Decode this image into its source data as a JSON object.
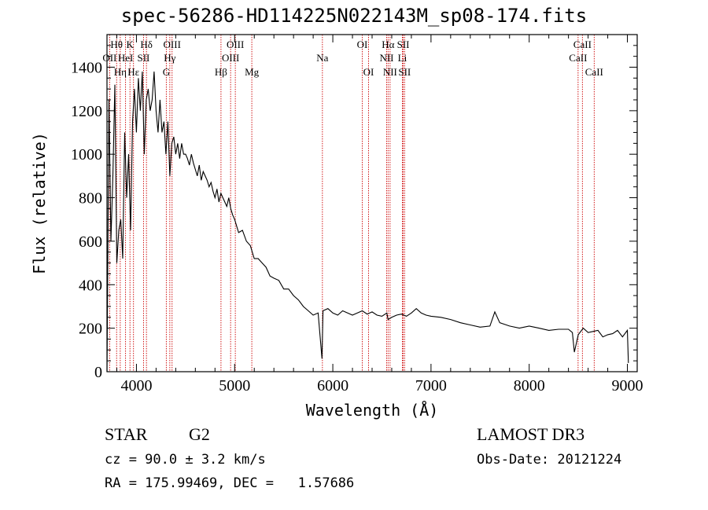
{
  "chart_data": {
    "type": "line",
    "title": "spec-56286-HD114225N022143M_sp08-174.fits",
    "xlabel": "Wavelength (Å)",
    "ylabel": "Flux (relative)",
    "xlim": [
      3700,
      9100
    ],
    "ylim": [
      0,
      1550
    ],
    "x_ticks": [
      4000,
      5000,
      6000,
      7000,
      8000,
      9000
    ],
    "y_ticks": [
      0,
      200,
      400,
      600,
      800,
      1000,
      1200,
      1400
    ],
    "series": [
      {
        "x": [
          3700,
          3720,
          3740,
          3760,
          3780,
          3800,
          3820,
          3840,
          3860,
          3880,
          3900,
          3920,
          3940,
          3960,
          3980,
          4000,
          4020,
          4040,
          4060,
          4080,
          4100,
          4120,
          4140,
          4160,
          4180,
          4200,
          4220,
          4240,
          4260,
          4280,
          4300,
          4320,
          4340,
          4360,
          4380,
          4400,
          4420,
          4440,
          4460,
          4480,
          4500,
          4520,
          4540,
          4560,
          4580,
          4600,
          4620,
          4640,
          4660,
          4680,
          4700,
          4720,
          4740,
          4760,
          4780,
          4800,
          4820,
          4840,
          4860,
          4880,
          4900,
          4920,
          4940,
          4960,
          4980,
          5000,
          5040,
          5080,
          5120,
          5160,
          5200,
          5240,
          5280,
          5320,
          5360,
          5400,
          5450,
          5500,
          5550,
          5600,
          5650,
          5700,
          5750,
          5800,
          5850,
          5890,
          5900,
          5950,
          6000,
          6050,
          6100,
          6150,
          6200,
          6250,
          6300,
          6350,
          6400,
          6450,
          6500,
          6550,
          6563,
          6600,
          6650,
          6700,
          6750,
          6800,
          6850,
          6900,
          6950,
          7000,
          7100,
          7200,
          7300,
          7400,
          7500,
          7600,
          7650,
          7700,
          7800,
          7900,
          8000,
          8100,
          8200,
          8300,
          8400,
          8440,
          8460,
          8500,
          8550,
          8600,
          8650,
          8700,
          8750,
          8800,
          8850,
          8900,
          8950,
          9000,
          9010
        ],
        "y": [
          0,
          1250,
          600,
          900,
          1320,
          500,
          650,
          700,
          520,
          1100,
          800,
          1000,
          650,
          1150,
          1300,
          1100,
          1350,
          1200,
          1380,
          1000,
          1250,
          1300,
          1200,
          1250,
          1380,
          1200,
          1100,
          1250,
          1100,
          1150,
          1000,
          1150,
          900,
          1050,
          1080,
          1000,
          1050,
          980,
          1050,
          1000,
          1000,
          980,
          950,
          1000,
          960,
          930,
          900,
          950,
          880,
          920,
          900,
          880,
          850,
          870,
          830,
          800,
          840,
          780,
          820,
          800,
          780,
          760,
          800,
          750,
          720,
          700,
          640,
          650,
          600,
          580,
          520,
          520,
          500,
          480,
          440,
          430,
          420,
          380,
          380,
          350,
          330,
          300,
          280,
          260,
          270,
          60,
          280,
          290,
          270,
          260,
          280,
          270,
          260,
          270,
          280,
          265,
          275,
          260,
          255,
          270,
          240,
          250,
          260,
          265,
          255,
          270,
          290,
          270,
          260,
          255,
          250,
          240,
          225,
          215,
          205,
          210,
          275,
          225,
          210,
          200,
          210,
          200,
          190,
          195,
          195,
          180,
          90,
          170,
          200,
          180,
          185,
          190,
          160,
          170,
          175,
          190,
          160,
          190,
          40
        ]
      }
    ],
    "spectral_lines": [
      {
        "label": "Hθ",
        "x": 3798,
        "row": 1
      },
      {
        "label": "OII",
        "x": 3727,
        "row": 2
      },
      {
        "label": "Hη",
        "x": 3835,
        "row": 3
      },
      {
        "label": "K",
        "x": 3934,
        "row": 1
      },
      {
        "label": "HeI",
        "x": 3889,
        "row": 2
      },
      {
        "label": "Hε",
        "x": 3970,
        "row": 3
      },
      {
        "label": "Hδ",
        "x": 4102,
        "row": 1
      },
      {
        "label": "SII",
        "x": 4072,
        "row": 2
      },
      {
        "label": "OIII",
        "x": 4363,
        "row": 1
      },
      {
        "label": "Hγ",
        "x": 4340,
        "row": 2
      },
      {
        "label": "G",
        "x": 4304,
        "row": 3
      },
      {
        "label": "Hβ",
        "x": 4861,
        "row": 3
      },
      {
        "label": "OIII",
        "x": 5007,
        "row": 1
      },
      {
        "label": "OIII",
        "x": 4959,
        "row": 2
      },
      {
        "label": "Mg",
        "x": 5175,
        "row": 3
      },
      {
        "label": "Na",
        "x": 5894,
        "row": 2
      },
      {
        "label": "OI",
        "x": 6300,
        "row": 1
      },
      {
        "label": "OI",
        "x": 6364,
        "row": 3
      },
      {
        "label": "Hα",
        "x": 6563,
        "row": 1
      },
      {
        "label": "NII",
        "x": 6548,
        "row": 2
      },
      {
        "label": "NII",
        "x": 6583,
        "row": 3
      },
      {
        "label": "SII",
        "x": 6717,
        "row": 1
      },
      {
        "label": "Li",
        "x": 6708,
        "row": 2
      },
      {
        "label": "SII",
        "x": 6731,
        "row": 3
      },
      {
        "label": "CaII",
        "x": 8542,
        "row": 1
      },
      {
        "label": "CaII",
        "x": 8498,
        "row": 2
      },
      {
        "label": "CaII",
        "x": 8662,
        "row": 3
      }
    ],
    "colors": {
      "spectrum": "#000000",
      "lines": "#cc0000",
      "axes": "#000000"
    }
  },
  "info": {
    "object_class": "STAR",
    "subclass": "G2",
    "survey": "LAMOST DR3",
    "cz": "cz = 90.0 ± 3.2 km/s",
    "obs_date": "Obs-Date: 20121224",
    "coords": "RA = 175.99469, DEC =   1.57686"
  }
}
